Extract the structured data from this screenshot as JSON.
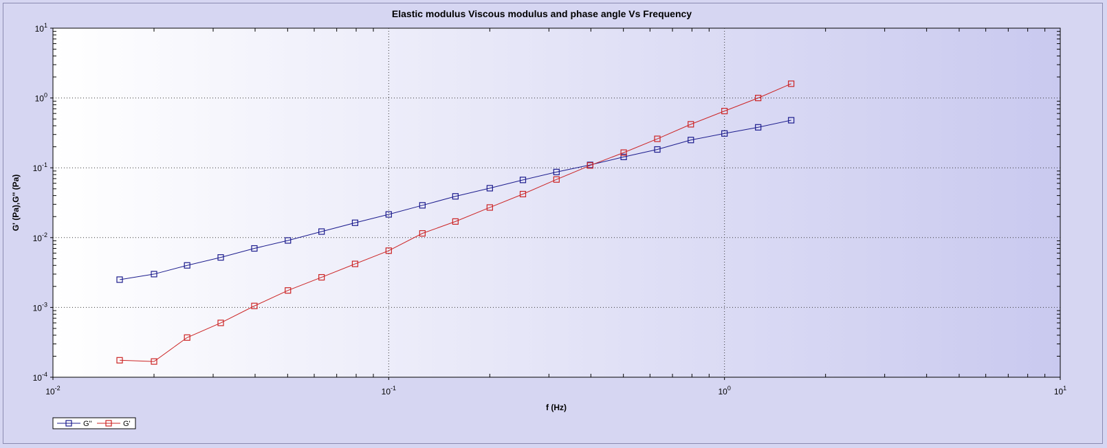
{
  "chart_data": {
    "type": "line",
    "title": "Elastic modulus Viscous modulus and phase angle Vs Frequency",
    "xlabel": "f (Hz)",
    "ylabel": "G' (Pa),G'' (Pa)",
    "x_scale": "log",
    "y_scale": "log",
    "xlim": [
      0.01,
      10
    ],
    "ylim": [
      0.0001,
      10
    ],
    "x_ticks": [
      {
        "base": "10",
        "exp": "-2"
      },
      {
        "base": "10",
        "exp": "-1"
      },
      {
        "base": "10",
        "exp": "0"
      },
      {
        "base": "10",
        "exp": "1"
      }
    ],
    "y_ticks": [
      {
        "base": "10",
        "exp": "-4"
      },
      {
        "base": "10",
        "exp": "-3"
      },
      {
        "base": "10",
        "exp": "-2"
      },
      {
        "base": "10",
        "exp": "-1"
      },
      {
        "base": "10",
        "exp": "0"
      },
      {
        "base": "10",
        "exp": "1"
      }
    ],
    "grid": true,
    "legend_position": "bottom-left",
    "series": [
      {
        "name": "G''",
        "color": "#1a1a8c",
        "marker": "square",
        "x": [
          0.0158,
          0.02,
          0.0251,
          0.0316,
          0.0398,
          0.0501,
          0.0631,
          0.0794,
          0.1,
          0.126,
          0.158,
          0.2,
          0.251,
          0.316,
          0.398,
          0.501,
          0.631,
          0.794,
          1.0,
          1.26,
          1.58
        ],
        "y": [
          0.0025,
          0.003,
          0.004,
          0.0052,
          0.007,
          0.0091,
          0.0122,
          0.0163,
          0.0215,
          0.029,
          0.039,
          0.051,
          0.067,
          0.087,
          0.11,
          0.143,
          0.183,
          0.25,
          0.31,
          0.38,
          0.48
        ]
      },
      {
        "name": "G'",
        "color": "#cc2222",
        "marker": "square",
        "x": [
          0.0158,
          0.02,
          0.0251,
          0.0316,
          0.0398,
          0.0501,
          0.0631,
          0.0794,
          0.1,
          0.126,
          0.158,
          0.2,
          0.251,
          0.316,
          0.398,
          0.501,
          0.631,
          0.794,
          1.0,
          1.26,
          1.58
        ],
        "y": [
          0.000175,
          0.000168,
          0.00037,
          0.0006,
          0.00105,
          0.00175,
          0.0027,
          0.0042,
          0.0065,
          0.0115,
          0.017,
          0.027,
          0.042,
          0.068,
          0.108,
          0.165,
          0.26,
          0.42,
          0.65,
          1.0,
          1.6
        ]
      }
    ]
  }
}
